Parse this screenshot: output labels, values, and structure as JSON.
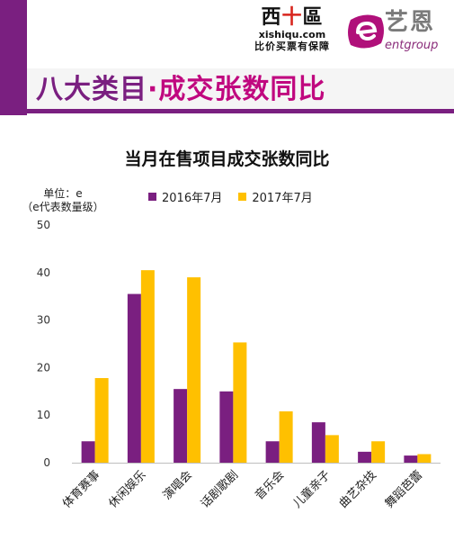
{
  "header": {
    "xsq_logo": {
      "cn_a": "西",
      "cn_plus": "十",
      "cn_b": "區",
      "url": "xishiqu.com",
      "slogan": "比价买票有保障"
    },
    "ent_logo": {
      "cn": "艺恩",
      "en": "entgroup"
    },
    "page_title_first": "八大类目",
    "page_title_rest": "·成交张数同比"
  },
  "colors": {
    "purple": "#7a1f80",
    "gold": "#ffc000",
    "magenta": "#c0087f"
  },
  "chart_data": {
    "type": "bar",
    "title": "当月在售项目成交张数同比",
    "unit_line1": "单位：e",
    "unit_line2": "（e代表数量级）",
    "ylim": [
      0,
      50
    ],
    "yticks": [
      0,
      10,
      20,
      30,
      40,
      50
    ],
    "categories": [
      "体育赛事",
      "休闲娱乐",
      "演唱会",
      "话剧歌剧",
      "音乐会",
      "儿童亲子",
      "曲艺杂技",
      "舞蹈芭蕾"
    ],
    "series": [
      {
        "name": "2016年7月",
        "color": "#7a1f80",
        "values": [
          4.5,
          35.5,
          15.5,
          15,
          4.5,
          8.5,
          2.3,
          1.5
        ]
      },
      {
        "name": "2017年7月",
        "color": "#ffc000",
        "values": [
          17.8,
          40.5,
          39,
          25.3,
          10.8,
          5.8,
          4.5,
          1.8
        ]
      }
    ],
    "legend_position": "top",
    "grid": false
  }
}
